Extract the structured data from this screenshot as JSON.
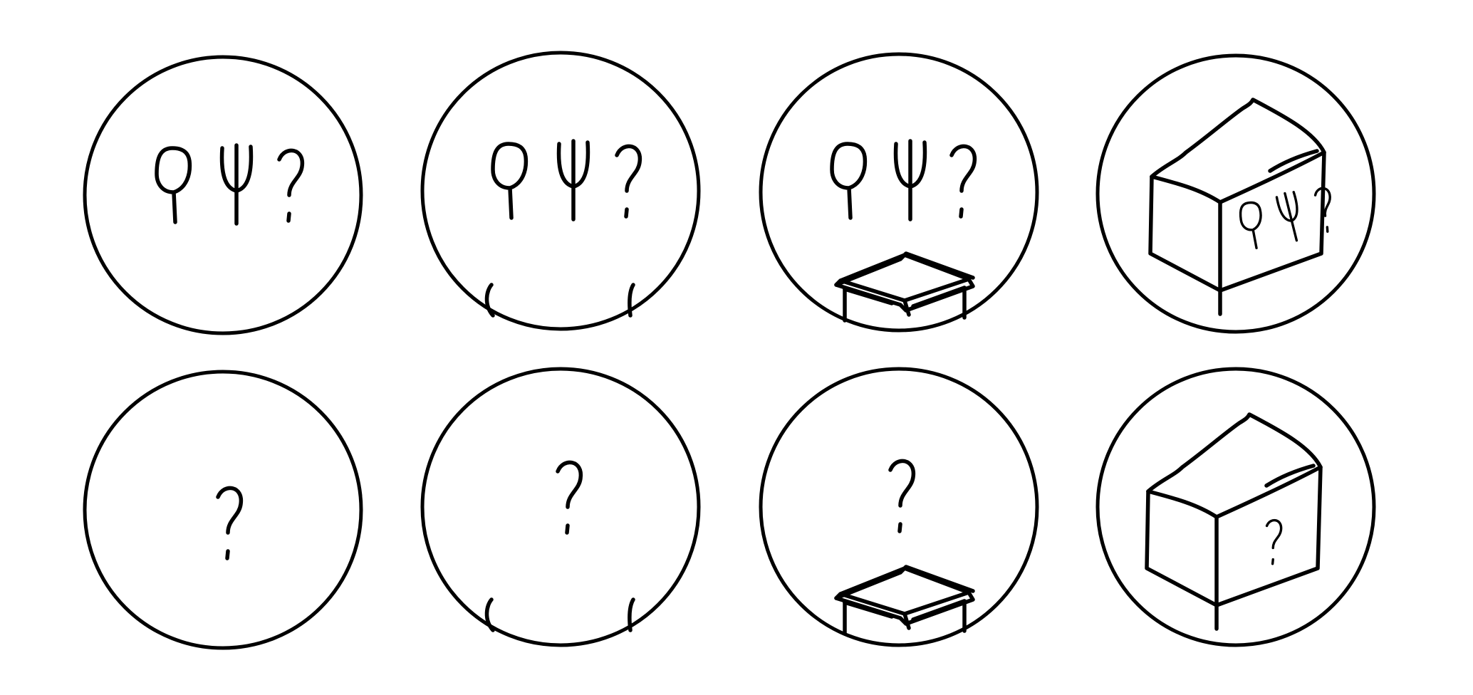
{
  "diagram": {
    "grid": {
      "rows": 2,
      "columns": 4
    },
    "ink_color": "#000000",
    "background": "#ffffff",
    "panels": [
      {
        "row": 1,
        "column": 1,
        "glyphs": "symbol-pair-and-question",
        "extra": "none"
      },
      {
        "row": 1,
        "column": 2,
        "glyphs": "symbol-pair-and-question",
        "extra": "partial-container"
      },
      {
        "row": 1,
        "column": 3,
        "glyphs": "symbol-pair-and-question",
        "extra": "open-box"
      },
      {
        "row": 1,
        "column": 4,
        "glyphs": "symbol-pair-and-question",
        "extra": "closed-box"
      },
      {
        "row": 2,
        "column": 1,
        "glyphs": "question-only",
        "extra": "none"
      },
      {
        "row": 2,
        "column": 2,
        "glyphs": "question-only",
        "extra": "partial-container"
      },
      {
        "row": 2,
        "column": 3,
        "glyphs": "question-only",
        "extra": "open-box"
      },
      {
        "row": 2,
        "column": 4,
        "glyphs": "question-only",
        "extra": "closed-box"
      }
    ]
  }
}
